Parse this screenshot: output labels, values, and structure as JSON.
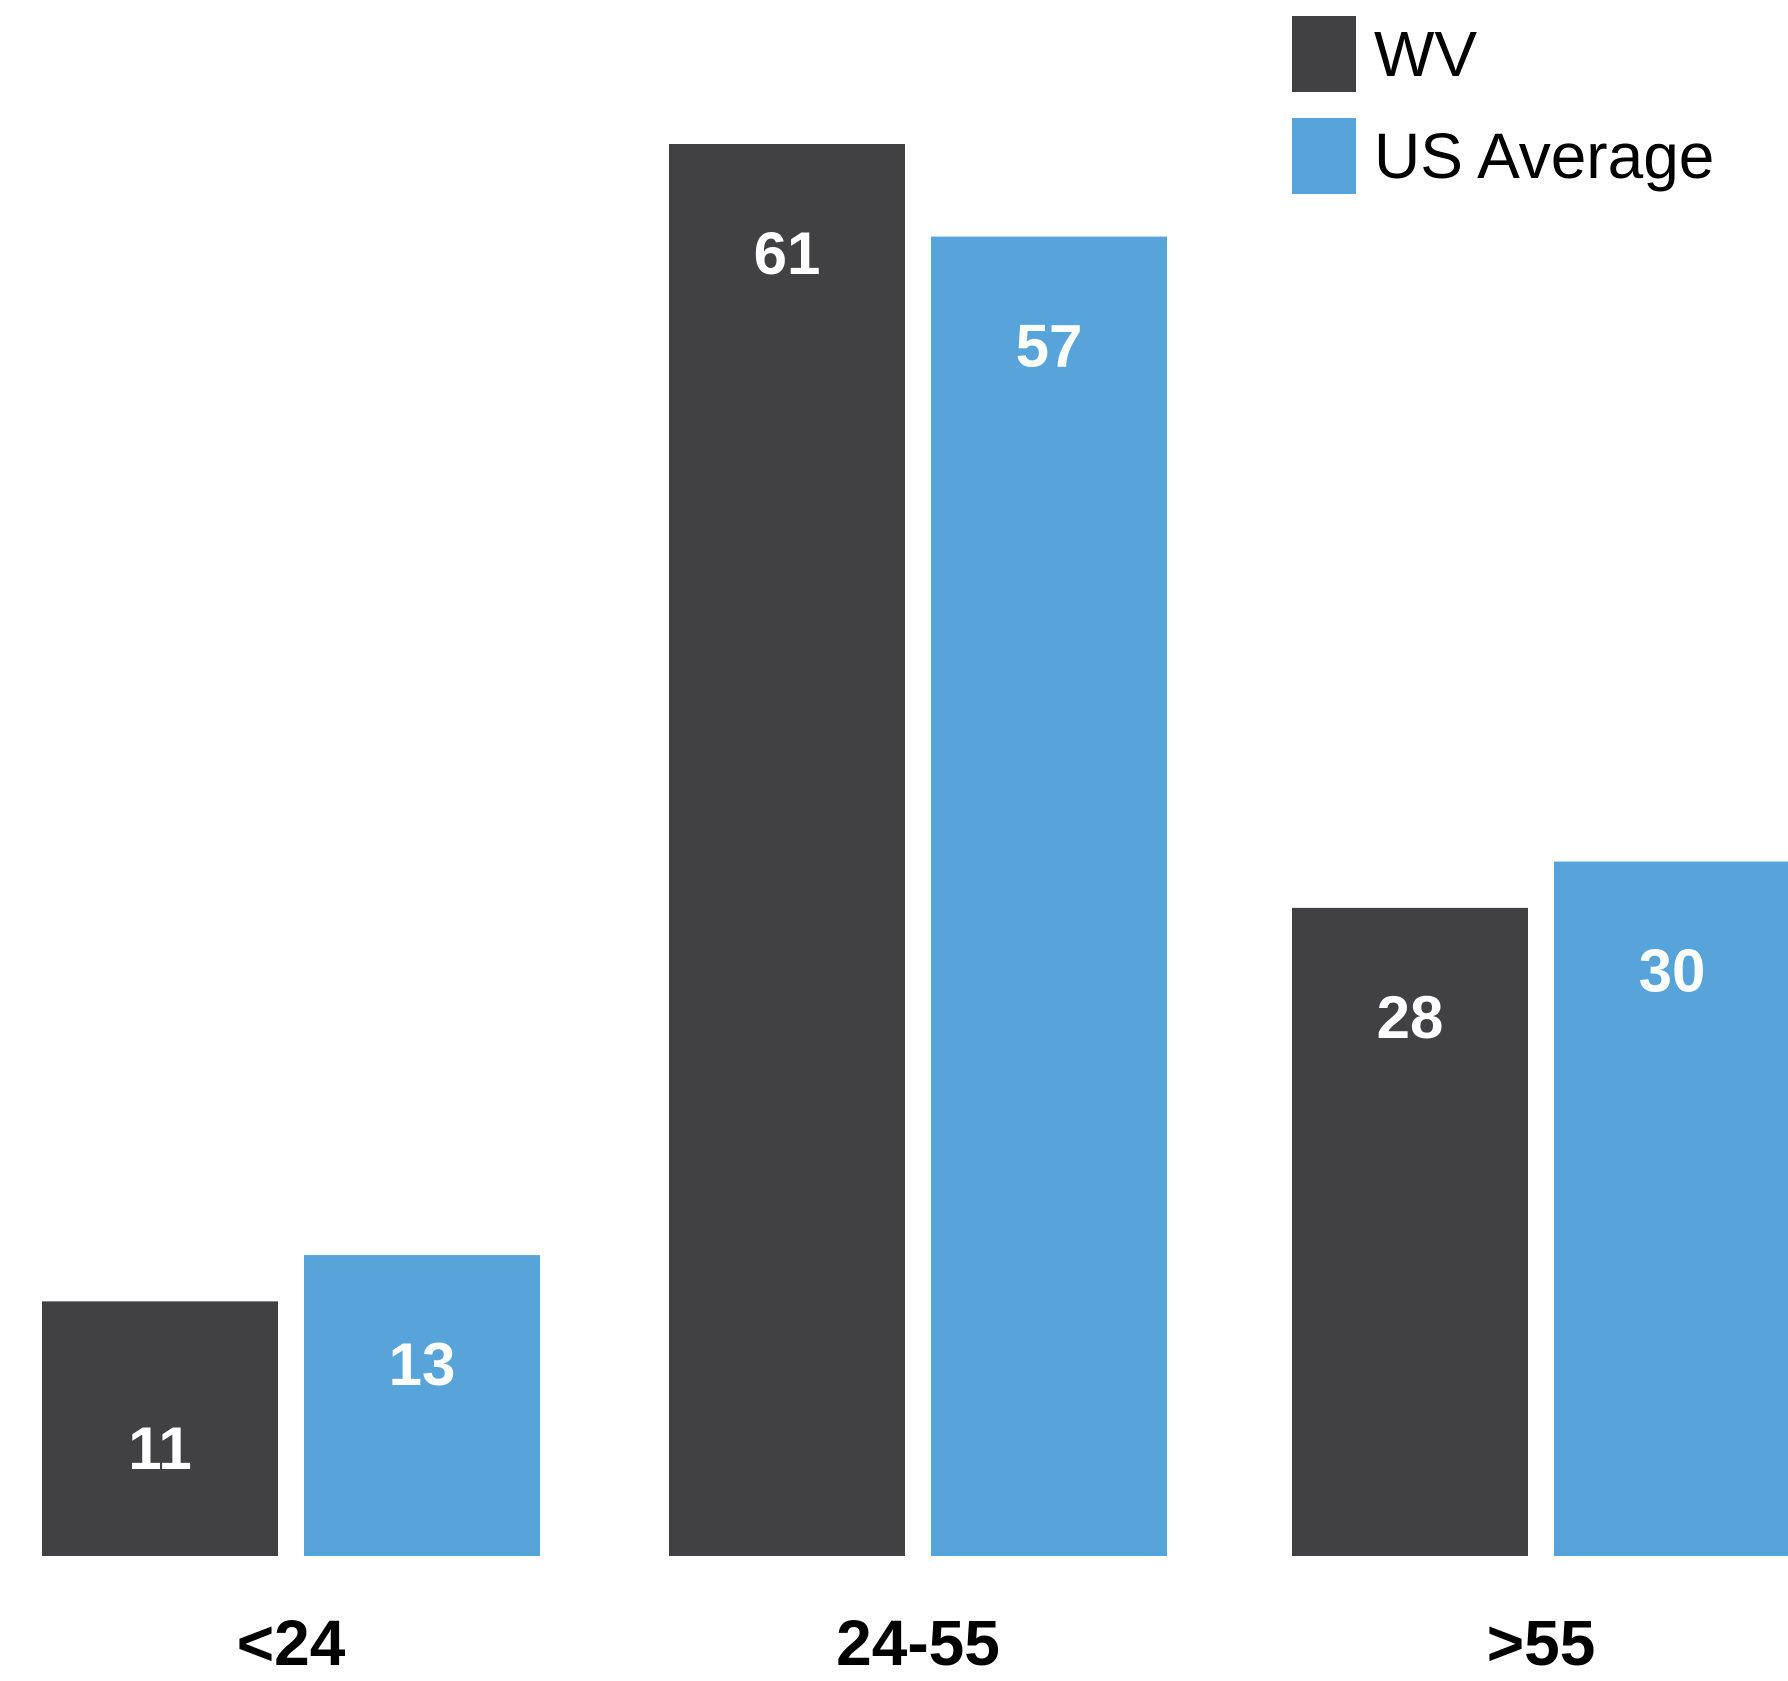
{
  "colors": {
    "wv": "#414143",
    "us": "#56a4da",
    "value_label": "#ffffff",
    "axis_label": "#000000"
  },
  "chart_data": {
    "type": "bar",
    "categories": [
      "<24",
      "24-55",
      ">55"
    ],
    "series": [
      {
        "name": "WV",
        "values": [
          11,
          61,
          28
        ]
      },
      {
        "name": "US Average",
        "values": [
          13,
          57,
          30
        ]
      }
    ],
    "ylim": [
      0,
      61
    ],
    "grid": false,
    "legend_position": "top-right"
  }
}
